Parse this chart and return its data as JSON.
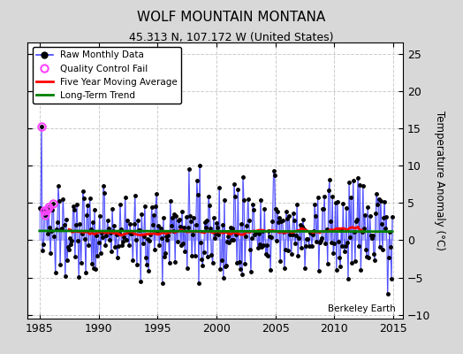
{
  "title": "WOLF MOUNTAIN MONTANA",
  "subtitle": "45.313 N, 107.172 W (United States)",
  "ylabel_right": "Temperature Anomaly (°C)",
  "watermark": "Berkeley Earth",
  "xlim": [
    1984.0,
    2015.8
  ],
  "ylim": [
    -10.5,
    26.5
  ],
  "yticks": [
    -10,
    -5,
    0,
    5,
    10,
    15,
    20,
    25
  ],
  "xticks": [
    1985,
    1990,
    1995,
    2000,
    2005,
    2010,
    2015
  ],
  "bg_color": "#d8d8d8",
  "plot_bg_color": "#ffffff",
  "raw_line_color": "#4444ff",
  "raw_fill_color": "#aaaaff",
  "raw_marker_color": "black",
  "moving_avg_color": "red",
  "trend_color": "green",
  "qc_fail_color": "#ff44ff",
  "seed": 137,
  "noise_scale": 3.2,
  "trend_slope": 0.025,
  "trend_intercept": 0.8,
  "qc_year_indices": [
    2,
    5,
    6,
    7,
    9,
    14
  ]
}
